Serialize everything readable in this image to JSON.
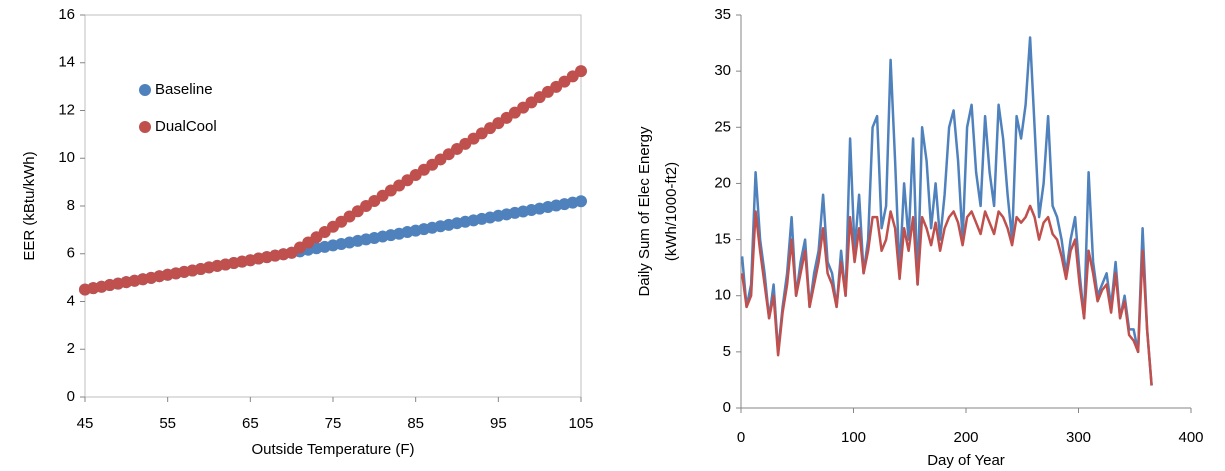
{
  "chart_data": [
    {
      "type": "scatter",
      "ylabel": "EER (kBtu/kWh)",
      "xlabel": "Outside Temperature (F)",
      "xlim": [
        45,
        105
      ],
      "xticks": [
        45,
        55,
        65,
        75,
        85,
        95,
        105
      ],
      "ylim": [
        0,
        16
      ],
      "yticks": [
        0,
        2,
        4,
        6,
        8,
        10,
        12,
        14,
        16
      ],
      "legend": "upper left",
      "x": [
        45,
        46,
        47,
        48,
        49,
        50,
        51,
        52,
        53,
        54,
        55,
        56,
        57,
        58,
        59,
        60,
        61,
        62,
        63,
        64,
        65,
        66,
        67,
        68,
        69,
        70,
        71,
        72,
        73,
        74,
        75,
        76,
        77,
        78,
        79,
        80,
        81,
        82,
        83,
        84,
        85,
        86,
        87,
        88,
        89,
        90,
        91,
        92,
        93,
        94,
        95,
        96,
        97,
        98,
        99,
        100,
        101,
        102,
        103,
        104,
        105
      ],
      "series": [
        {
          "name": "Baseline",
          "color": "#4f81bd",
          "values": [
            4.5,
            4.56,
            4.62,
            4.69,
            4.75,
            4.81,
            4.87,
            4.93,
            4.99,
            5.06,
            5.12,
            5.18,
            5.24,
            5.3,
            5.36,
            5.43,
            5.49,
            5.55,
            5.61,
            5.67,
            5.73,
            5.8,
            5.86,
            5.92,
            5.98,
            6.04,
            6.1,
            6.17,
            6.23,
            6.29,
            6.35,
            6.41,
            6.47,
            6.54,
            6.6,
            6.66,
            6.72,
            6.78,
            6.84,
            6.91,
            6.97,
            7.03,
            7.09,
            7.15,
            7.21,
            7.28,
            7.34,
            7.4,
            7.46,
            7.52,
            7.59,
            7.65,
            7.71,
            7.77,
            7.83,
            7.89,
            7.96,
            8.02,
            8.08,
            8.14,
            8.2
          ]
        },
        {
          "name": "DualCool",
          "color": "#c0504d",
          "values": [
            4.5,
            4.56,
            4.62,
            4.69,
            4.75,
            4.81,
            4.87,
            4.93,
            4.99,
            5.06,
            5.12,
            5.18,
            5.24,
            5.3,
            5.36,
            5.43,
            5.49,
            5.55,
            5.61,
            5.67,
            5.73,
            5.8,
            5.86,
            5.92,
            5.98,
            6.04,
            6.26,
            6.47,
            6.69,
            6.91,
            7.13,
            7.34,
            7.56,
            7.78,
            8.0,
            8.21,
            8.43,
            8.65,
            8.86,
            9.08,
            9.3,
            9.52,
            9.73,
            9.95,
            10.17,
            10.39,
            10.6,
            10.82,
            11.04,
            11.26,
            11.47,
            11.69,
            11.91,
            12.12,
            12.34,
            12.56,
            12.78,
            12.99,
            13.21,
            13.43,
            13.65
          ]
        }
      ]
    },
    {
      "type": "line",
      "ylabel": [
        "Daily Sum of Elec Energy",
        "(kWh/1000-ft2)"
      ],
      "xlabel": "Day of Year",
      "xlim": [
        0,
        400
      ],
      "xticks": [
        0,
        100,
        200,
        300,
        400
      ],
      "ylim": [
        0,
        35
      ],
      "yticks": [
        0,
        5,
        10,
        15,
        20,
        25,
        30,
        35
      ],
      "x": [
        1,
        5,
        9,
        13,
        17,
        21,
        25,
        29,
        33,
        37,
        41,
        45,
        49,
        53,
        57,
        61,
        65,
        69,
        73,
        77,
        81,
        85,
        89,
        93,
        97,
        101,
        105,
        109,
        113,
        117,
        121,
        125,
        129,
        133,
        137,
        141,
        145,
        149,
        153,
        157,
        161,
        165,
        169,
        173,
        177,
        181,
        185,
        189,
        193,
        197,
        201,
        205,
        209,
        213,
        217,
        221,
        225,
        229,
        233,
        237,
        241,
        245,
        249,
        253,
        257,
        261,
        265,
        269,
        273,
        277,
        281,
        285,
        289,
        293,
        297,
        301,
        305,
        309,
        313,
        317,
        321,
        325,
        329,
        333,
        337,
        341,
        345,
        349,
        353,
        357,
        361,
        365
      ],
      "series": [
        {
          "color": "#4f81bd",
          "values": [
            13.5,
            9,
            11,
            21,
            15,
            12,
            8,
            11,
            5,
            9,
            12,
            17,
            10,
            13,
            15,
            9,
            12,
            14,
            19,
            13,
            12,
            9,
            14,
            10,
            24,
            14,
            19,
            12,
            15,
            25,
            26,
            16,
            18,
            31,
            22,
            12,
            20,
            15,
            24,
            11,
            25,
            22,
            16,
            20,
            15,
            19,
            25,
            26.5,
            22,
            15,
            25,
            27,
            21,
            18,
            26,
            21,
            18,
            27,
            24,
            19,
            15,
            26,
            24,
            27,
            33,
            25,
            17,
            20,
            26,
            18,
            17,
            15,
            12,
            15,
            17,
            12,
            8,
            21,
            13,
            10,
            11,
            12,
            9,
            13,
            8,
            10,
            7,
            7,
            5,
            16,
            7,
            2
          ]
        },
        {
          "color": "#c0504d",
          "values": [
            12,
            9,
            10,
            17.5,
            14,
            11,
            8,
            10,
            4.7,
            8.5,
            11,
            15,
            10,
            12,
            14,
            9,
            11,
            13,
            16,
            12,
            11,
            9,
            13,
            10,
            17,
            13,
            16,
            12,
            14,
            17,
            17,
            14,
            15,
            17.5,
            16,
            11.5,
            16,
            14,
            17,
            11,
            17,
            16,
            14.5,
            16.5,
            14,
            16,
            17,
            17.5,
            16.5,
            14.5,
            17,
            17.5,
            16.5,
            15.5,
            17.5,
            16.5,
            15.5,
            17.5,
            17,
            16,
            14.5,
            17,
            16.5,
            17,
            18,
            17,
            15,
            16.5,
            17,
            15.5,
            15,
            13.5,
            11.5,
            14,
            15,
            11,
            8,
            14,
            12,
            9.5,
            10.5,
            11,
            8.5,
            12,
            8,
            9.5,
            6.5,
            6,
            5,
            14,
            7,
            2
          ]
        }
      ]
    }
  ]
}
